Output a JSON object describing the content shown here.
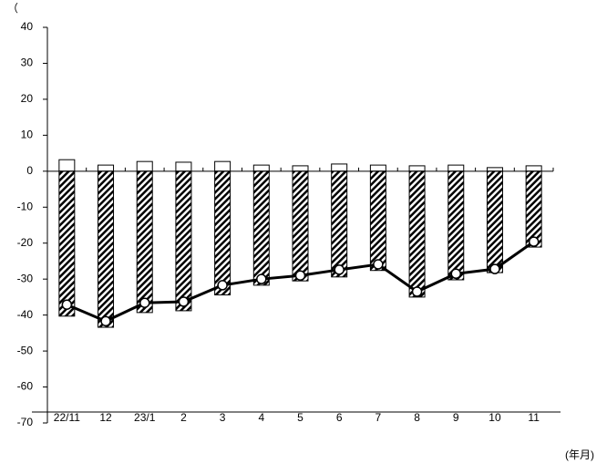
{
  "chart_data": {
    "type": "bar",
    "top_label": "（",
    "x_label": "(年月)",
    "categories": [
      "22/11",
      "12",
      "23/1",
      "2",
      "3",
      "4",
      "5",
      "6",
      "7",
      "8",
      "9",
      "10",
      "11"
    ],
    "series": [
      {
        "kind": "bar",
        "color": "#ffffff",
        "pattern": "none",
        "values": [
          3.2,
          1.7,
          2.7,
          2.5,
          2.7,
          1.7,
          1.5,
          2.0,
          1.7,
          1.5,
          1.7,
          1.0,
          1.5
        ]
      },
      {
        "kind": "bar",
        "color": "#000000",
        "pattern": "hatch",
        "values": [
          -40.3,
          -43.4,
          -39.3,
          -38.8,
          -34.4,
          -31.7,
          -30.5,
          -29.4,
          -27.6,
          -35.0,
          -30.2,
          -28.2,
          -21.1
        ]
      },
      {
        "kind": "line",
        "color": "#000000",
        "values": [
          -37.1,
          -41.7,
          -36.6,
          -36.3,
          -31.7,
          -30.0,
          -29.0,
          -27.4,
          -25.9,
          -33.5,
          -28.5,
          -27.2,
          -19.6
        ]
      }
    ],
    "ylim": [
      -70,
      40
    ],
    "yticks": [
      -70,
      -60,
      -50,
      -40,
      -30,
      -20,
      -10,
      0,
      10,
      20,
      30,
      40
    ]
  }
}
